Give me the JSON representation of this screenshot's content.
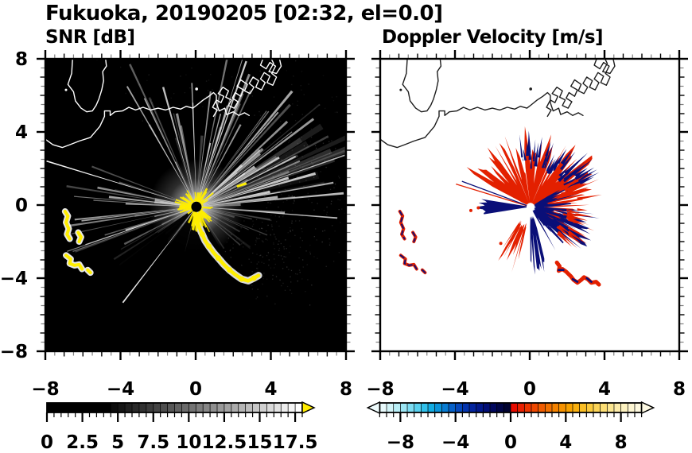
{
  "header": {
    "title": "Fukuoka, 20190205 [02:32, el=0.0]"
  },
  "chart_data": [
    {
      "type": "heatmap",
      "title": "SNR [dB]",
      "xlabel": "",
      "ylabel": "",
      "xlim": [
        -8,
        8
      ],
      "ylim": [
        -8,
        8
      ],
      "xticks": [
        "−8",
        "−4",
        "0",
        "4",
        "8"
      ],
      "yticks": [
        "8",
        "4",
        "0",
        "−4",
        "−8"
      ],
      "xtick_values": [
        -8,
        -4,
        0,
        4,
        8
      ],
      "ytick_values": [
        8,
        4,
        0,
        -4,
        -8
      ],
      "minor_tick_step": 0.5,
      "background": "#000000",
      "colorbar": {
        "min": 0,
        "max": 18,
        "segment": 0.5,
        "tick_labels": [
          "0",
          "2.5",
          "5",
          "7.5",
          "10",
          "12.5",
          "15",
          "17.5"
        ],
        "tick_values": [
          0,
          2.5,
          5,
          7.5,
          10,
          12.5,
          15,
          17.5
        ],
        "major_tick_step": 2.5,
        "black_until": 4.5,
        "ramp_start": "#0d0d0d",
        "ramp_end": "#ffffff",
        "overflow_arrow_color": "#ffec00"
      },
      "features": {
        "radar_center": [
          0.04,
          -0.1
        ],
        "target_color": "#ffee00",
        "halo_color": "#ffffff",
        "glow_radius": 60,
        "center_dot_radius": 6.5,
        "ray_sectors": [
          {
            "b0": -32,
            "b1": 95,
            "count": 66,
            "len": [
              55,
              205
            ],
            "w": [
              1,
              3.5
            ],
            "op": [
              0.12,
              0.8
            ]
          },
          {
            "b0": 56,
            "b1": 82,
            "count": 9,
            "len": [
              140,
              240
            ],
            "w": [
              4,
              10
            ],
            "op": [
              0.05,
              0.2
            ]
          },
          {
            "b0": 244,
            "b1": 292,
            "count": 24,
            "len": [
              40,
              170
            ],
            "w": [
              1,
              3
            ],
            "op": [
              0.12,
              0.7
            ]
          },
          {
            "b0": 212,
            "b1": 243,
            "count": 9,
            "len": [
              35,
              125
            ],
            "w": [
              1,
              2.5
            ],
            "op": [
              0.08,
              0.4
            ]
          },
          {
            "b0": 96,
            "b1": 148,
            "count": 14,
            "len": [
              30,
              115
            ],
            "w": [
              1,
              2.2
            ],
            "op": [
              0.05,
              0.25
            ]
          }
        ],
        "special_rays": [
          {
            "b": 287,
            "len": 197,
            "w": 1.6,
            "op": 0.95
          },
          {
            "b": 217.5,
            "len": 152,
            "w": 1.8,
            "op": 0.9
          },
          {
            "b": 251,
            "len": 172,
            "w": 1.2,
            "op": 0.5
          }
        ],
        "shadow_wedges": [
          {
            "b0": 195,
            "b1": 215.5,
            "r": 175,
            "op": 0.95
          },
          {
            "b0": 219.5,
            "b1": 237,
            "r": 165,
            "op": 0.95
          },
          {
            "b0": 150,
            "b1": 194,
            "r": 215,
            "op": 0.92
          }
        ],
        "speckle_zones": [
          {
            "b0": 58,
            "b1": 132,
            "r": [
              85,
              190
            ],
            "count": 200,
            "op": 0.22
          },
          {
            "b0": 100,
            "b1": 155,
            "r": [
              55,
              165
            ],
            "count": 90,
            "op": 0.18
          },
          {
            "b0": -35,
            "b1": 60,
            "r": [
              120,
              230
            ],
            "count": 120,
            "op": 0.14
          }
        ],
        "center_spikes": {
          "count": 64,
          "r0": 5,
          "len": [
            8,
            28
          ],
          "south_boost": 16
        },
        "yellow_chain": [
          [
            0.05,
            -0.5
          ],
          [
            0.1,
            -0.9
          ],
          [
            0.2,
            -1.25
          ],
          [
            0.35,
            -1.6
          ],
          [
            0.5,
            -1.95
          ],
          [
            0.7,
            -2.25
          ],
          [
            0.95,
            -2.6
          ],
          [
            1.2,
            -2.9
          ],
          [
            1.5,
            -3.25
          ],
          [
            1.8,
            -3.55
          ],
          [
            2.1,
            -3.8
          ],
          [
            2.45,
            -4.05
          ],
          [
            2.8,
            -4.15
          ],
          [
            3.1,
            -4.0
          ],
          [
            3.35,
            -3.85
          ]
        ],
        "left_squiggles": [
          [
            [
              -6.95,
              -0.35
            ],
            [
              -6.8,
              -0.6
            ],
            [
              -6.9,
              -0.95
            ],
            [
              -6.75,
              -1.3
            ],
            [
              -6.85,
              -1.6
            ],
            [
              -6.7,
              -1.85
            ]
          ],
          [
            [
              -6.25,
              -1.5
            ],
            [
              -6.1,
              -1.75
            ],
            [
              -6.2,
              -2.0
            ]
          ],
          [
            [
              -6.9,
              -2.75
            ],
            [
              -6.65,
              -2.95
            ],
            [
              -6.7,
              -3.2
            ],
            [
              -6.45,
              -3.3
            ],
            [
              -6.2,
              -3.25
            ],
            [
              -6.05,
              -3.5
            ]
          ],
          [
            [
              -5.75,
              -3.55
            ],
            [
              -5.6,
              -3.7
            ]
          ]
        ],
        "dash_mark": [
          2.45,
          1.1
        ]
      }
    },
    {
      "type": "heatmap",
      "title": "Doppler Velocity [m/s]",
      "xlabel": "",
      "ylabel": "",
      "xlim": [
        -8,
        8
      ],
      "ylim": [
        -8,
        8
      ],
      "xticks": [
        "−8",
        "−4",
        "0",
        "4",
        "8"
      ],
      "xtick_values": [
        -8,
        -4,
        0,
        4,
        8
      ],
      "minor_tick_step": 0.5,
      "background": "#ffffff",
      "colorbar": {
        "min": -9.5,
        "max": 9.5,
        "segment": 0.5,
        "tick_labels": [
          "−8",
          "−4",
          "0",
          "4",
          "8"
        ],
        "tick_values": [
          -8,
          -4,
          0,
          4,
          8
        ],
        "neg_colors": [
          "#e8fafc",
          "#d2f4f8",
          "#b8eef6",
          "#9ce6f4",
          "#7cdcf2",
          "#58d0ee",
          "#30c0ea",
          "#12ace2",
          "#0a94da",
          "#087cd2",
          "#0660c8",
          "#0548bc",
          "#0434ae",
          "#03249e",
          "#02188c",
          "#020e76",
          "#01085e",
          "#010546",
          "#010330"
        ],
        "pos_colors": [
          "#e80c00",
          "#ea2000",
          "#ec3400",
          "#ee4800",
          "#f05c00",
          "#f27000",
          "#f48200",
          "#f69200",
          "#f8a200",
          "#f9b010",
          "#fabe24",
          "#fbca3c",
          "#fbd458",
          "#fcde74",
          "#fce690",
          "#fdecaa",
          "#fdf2c0",
          "#fef6d2",
          "#fef9e0"
        ],
        "left_arrow_color": "#eefbfc",
        "right_arrow_color": "#fefae4"
      },
      "features": {
        "radar_center": [
          0.04,
          -0.1
        ],
        "colors": {
          "red": "#e32000",
          "orange": "#f05c20",
          "navy": "#0a0f78"
        },
        "hole_radius": 5,
        "blobs": [
          {
            "name": "orange-inner",
            "b0": -50,
            "b1": 40,
            "rIn": 0.18,
            "rOut": 1.5,
            "jit": 0.5,
            "n": 30,
            "color": "orange",
            "seed": 12
          },
          {
            "name": "red-fan",
            "b0": -62,
            "b1": 78,
            "rIn": 0.22,
            "rOut": 3.3,
            "jit": 1.1,
            "n": 70,
            "color": "red",
            "seed": 11
          },
          {
            "name": "red-east",
            "b0": 70,
            "b1": 130,
            "rIn": 0.8,
            "rOut": 2.7,
            "jit": 1.0,
            "n": 40,
            "color": "red",
            "seed": 13
          },
          {
            "name": "red-sw-arm",
            "b0": 192,
            "b1": 216,
            "rIn": 1.1,
            "rOut": 2.9,
            "jit": 0.9,
            "n": 24,
            "color": "red",
            "seed": 14
          },
          {
            "name": "navy-east",
            "b0": 58,
            "b1": 152,
            "rIn": 0.25,
            "rOut": 2.0,
            "jit": 0.8,
            "n": 50,
            "color": "navy",
            "seed": 15
          },
          {
            "name": "navy-se",
            "b0": 95,
            "b1": 140,
            "rIn": 1.5,
            "rOut": 3.0,
            "jit": 0.9,
            "n": 30,
            "color": "navy",
            "seed": 16
          },
          {
            "name": "navy-south-streak",
            "b0": 163,
            "b1": 181,
            "rIn": 0.6,
            "rOut": 3.3,
            "jit": 0.5,
            "n": 18,
            "color": "navy",
            "seed": 17
          }
        ],
        "spike_fields": [
          {
            "name": "navy-top-spikes",
            "b0": -12,
            "b1": 68,
            "r0": [
              2.0,
              3.0
            ],
            "len": [
              0.5,
              1.6
            ],
            "count": 42,
            "w": [
              2,
              5
            ],
            "color": "navy",
            "seed": 18
          },
          {
            "name": "red-fringe-spikes",
            "b0": 60,
            "b1": 135,
            "r0": [
              1.8,
              2.6
            ],
            "len": [
              0.4,
              1.4
            ],
            "count": 30,
            "w": [
              2,
              5
            ],
            "color": "red",
            "seed": 19
          }
        ],
        "west_wedge": {
          "b0": 261,
          "b1": 279,
          "r": 2.6,
          "color": "navy",
          "seed": 21
        },
        "white_slices": [
          {
            "b": 352,
            "len": 95,
            "w": 2
          },
          {
            "b": 338,
            "len": 80,
            "w": 1.2
          },
          {
            "b": 23,
            "len": 70,
            "w": 1.2
          }
        ],
        "thin_rays": [
          {
            "b": 287,
            "len": 98,
            "color": "red",
            "w": 1.3
          },
          {
            "b": 290.5,
            "len": 92,
            "color": "navy",
            "w": 1.3
          }
        ],
        "snake": [
          [
            1.45,
            -3.15
          ],
          [
            1.6,
            -3.35
          ],
          [
            1.55,
            -3.6
          ],
          [
            1.75,
            -3.5
          ],
          [
            1.95,
            -3.65
          ],
          [
            2.2,
            -3.9
          ],
          [
            2.35,
            -4.1
          ],
          [
            2.55,
            -4.25
          ],
          [
            2.75,
            -4.1
          ],
          [
            2.9,
            -3.95
          ],
          [
            3.1,
            -4.05
          ],
          [
            3.3,
            -4.25
          ],
          [
            3.55,
            -4.2
          ],
          [
            3.7,
            -4.35
          ]
        ],
        "snake_navy_segments": [
          [
            [
              1.55,
              -3.55
            ],
            [
              1.8,
              -3.55
            ]
          ],
          [
            [
              2.3,
              -4.05
            ],
            [
              2.55,
              -4.2
            ]
          ],
          [
            [
              3.05,
              -4.0
            ],
            [
              3.3,
              -4.2
            ]
          ]
        ],
        "red_specks": [
          [
            -3.15,
            -0.3
          ],
          [
            -2.75,
            -0.15
          ],
          [
            -1.55,
            -2.1
          ]
        ],
        "dash_mark": [
          2.45,
          1.05
        ]
      }
    }
  ],
  "coastline": {
    "shore": [
      [
        -8,
        3.6
      ],
      [
        -7.6,
        3.3
      ],
      [
        -7.1,
        3.15
      ],
      [
        -6.7,
        3.3
      ],
      [
        -6.2,
        3.5
      ],
      [
        -5.6,
        3.7
      ],
      [
        -5.1,
        4.3
      ],
      [
        -4.85,
        4.85
      ],
      [
        -4.85,
        5.15
      ],
      [
        -4.55,
        5.15
      ],
      [
        -4.55,
        4.9
      ],
      [
        -4.3,
        5.1
      ],
      [
        -3.9,
        5.15
      ],
      [
        -3.55,
        5.35
      ],
      [
        -3.2,
        5.2
      ],
      [
        -2.8,
        5.35
      ],
      [
        -2.4,
        5.2
      ],
      [
        -2.0,
        5.3
      ],
      [
        -1.6,
        5.2
      ],
      [
        -1.2,
        5.35
      ],
      [
        -0.8,
        5.25
      ],
      [
        -0.5,
        5.4
      ],
      [
        -0.15,
        5.3
      ],
      [
        0.1,
        5.5
      ],
      [
        0.4,
        5.75
      ],
      [
        0.7,
        5.95
      ],
      [
        0.95,
        6.15
      ],
      [
        1.1,
        6.0
      ],
      [
        1.1,
        5.6
      ],
      [
        1.25,
        5.15
      ],
      [
        1.55,
        5.3
      ],
      [
        1.65,
        4.95
      ],
      [
        2.0,
        5.1
      ],
      [
        2.3,
        4.9
      ],
      [
        2.6,
        5.05
      ],
      [
        2.85,
        4.9
      ]
    ],
    "island": [
      [
        -6.55,
        8.05
      ],
      [
        -6.6,
        7.2
      ],
      [
        -6.8,
        6.6
      ],
      [
        -6.5,
        6.2
      ],
      [
        -6.4,
        5.7
      ],
      [
        -6.1,
        5.3
      ],
      [
        -5.8,
        5.1
      ],
      [
        -5.5,
        5.15
      ],
      [
        -5.3,
        5.45
      ],
      [
        -5.15,
        5.8
      ],
      [
        -5.0,
        6.3
      ],
      [
        -4.9,
        6.8
      ],
      [
        -4.95,
        7.3
      ],
      [
        -4.75,
        7.6
      ],
      [
        -4.8,
        8.05
      ]
    ],
    "island_dot": [
      -6.9,
      6.3
    ],
    "harbor": [
      [
        0.95,
        4.85
      ],
      [
        1.15,
        5.2
      ],
      [
        0.9,
        5.35
      ],
      [
        1.1,
        5.75
      ],
      [
        1.35,
        5.6
      ],
      [
        1.5,
        5.95
      ],
      [
        1.2,
        6.1
      ],
      [
        1.45,
        6.45
      ],
      [
        1.75,
        6.25
      ],
      [
        1.6,
        5.9
      ],
      [
        1.9,
        5.75
      ],
      [
        1.75,
        5.45
      ],
      [
        2.05,
        5.3
      ],
      [
        2.25,
        5.65
      ],
      [
        1.95,
        5.85
      ],
      [
        2.1,
        6.15
      ],
      [
        2.4,
        5.95
      ],
      [
        2.55,
        6.3
      ],
      [
        2.2,
        6.5
      ],
      [
        2.4,
        6.85
      ],
      [
        2.75,
        6.6
      ],
      [
        2.6,
        6.25
      ],
      [
        2.9,
        6.1
      ],
      [
        3.1,
        6.45
      ],
      [
        2.85,
        6.65
      ],
      [
        3.05,
        7.0
      ],
      [
        3.35,
        6.8
      ],
      [
        3.2,
        6.45
      ],
      [
        3.5,
        6.3
      ],
      [
        3.7,
        6.7
      ],
      [
        3.45,
        6.9
      ],
      [
        3.65,
        7.25
      ],
      [
        3.95,
        7.05
      ],
      [
        3.8,
        6.7
      ],
      [
        4.1,
        6.55
      ],
      [
        4.3,
        7.0
      ],
      [
        4.05,
        7.2
      ],
      [
        4.25,
        7.6
      ],
      [
        3.95,
        7.8
      ],
      [
        3.75,
        7.45
      ],
      [
        3.45,
        7.65
      ],
      [
        3.6,
        8.05
      ]
    ],
    "corner_piece": [
      [
        3.9,
        7.3
      ],
      [
        4.15,
        7.75
      ],
      [
        4.0,
        8.05
      ],
      [
        4.45,
        8.05
      ],
      [
        4.55,
        7.6
      ],
      [
        4.3,
        7.2
      ],
      [
        3.9,
        7.3
      ]
    ],
    "islet": [
      0.05,
      6.35
    ]
  }
}
